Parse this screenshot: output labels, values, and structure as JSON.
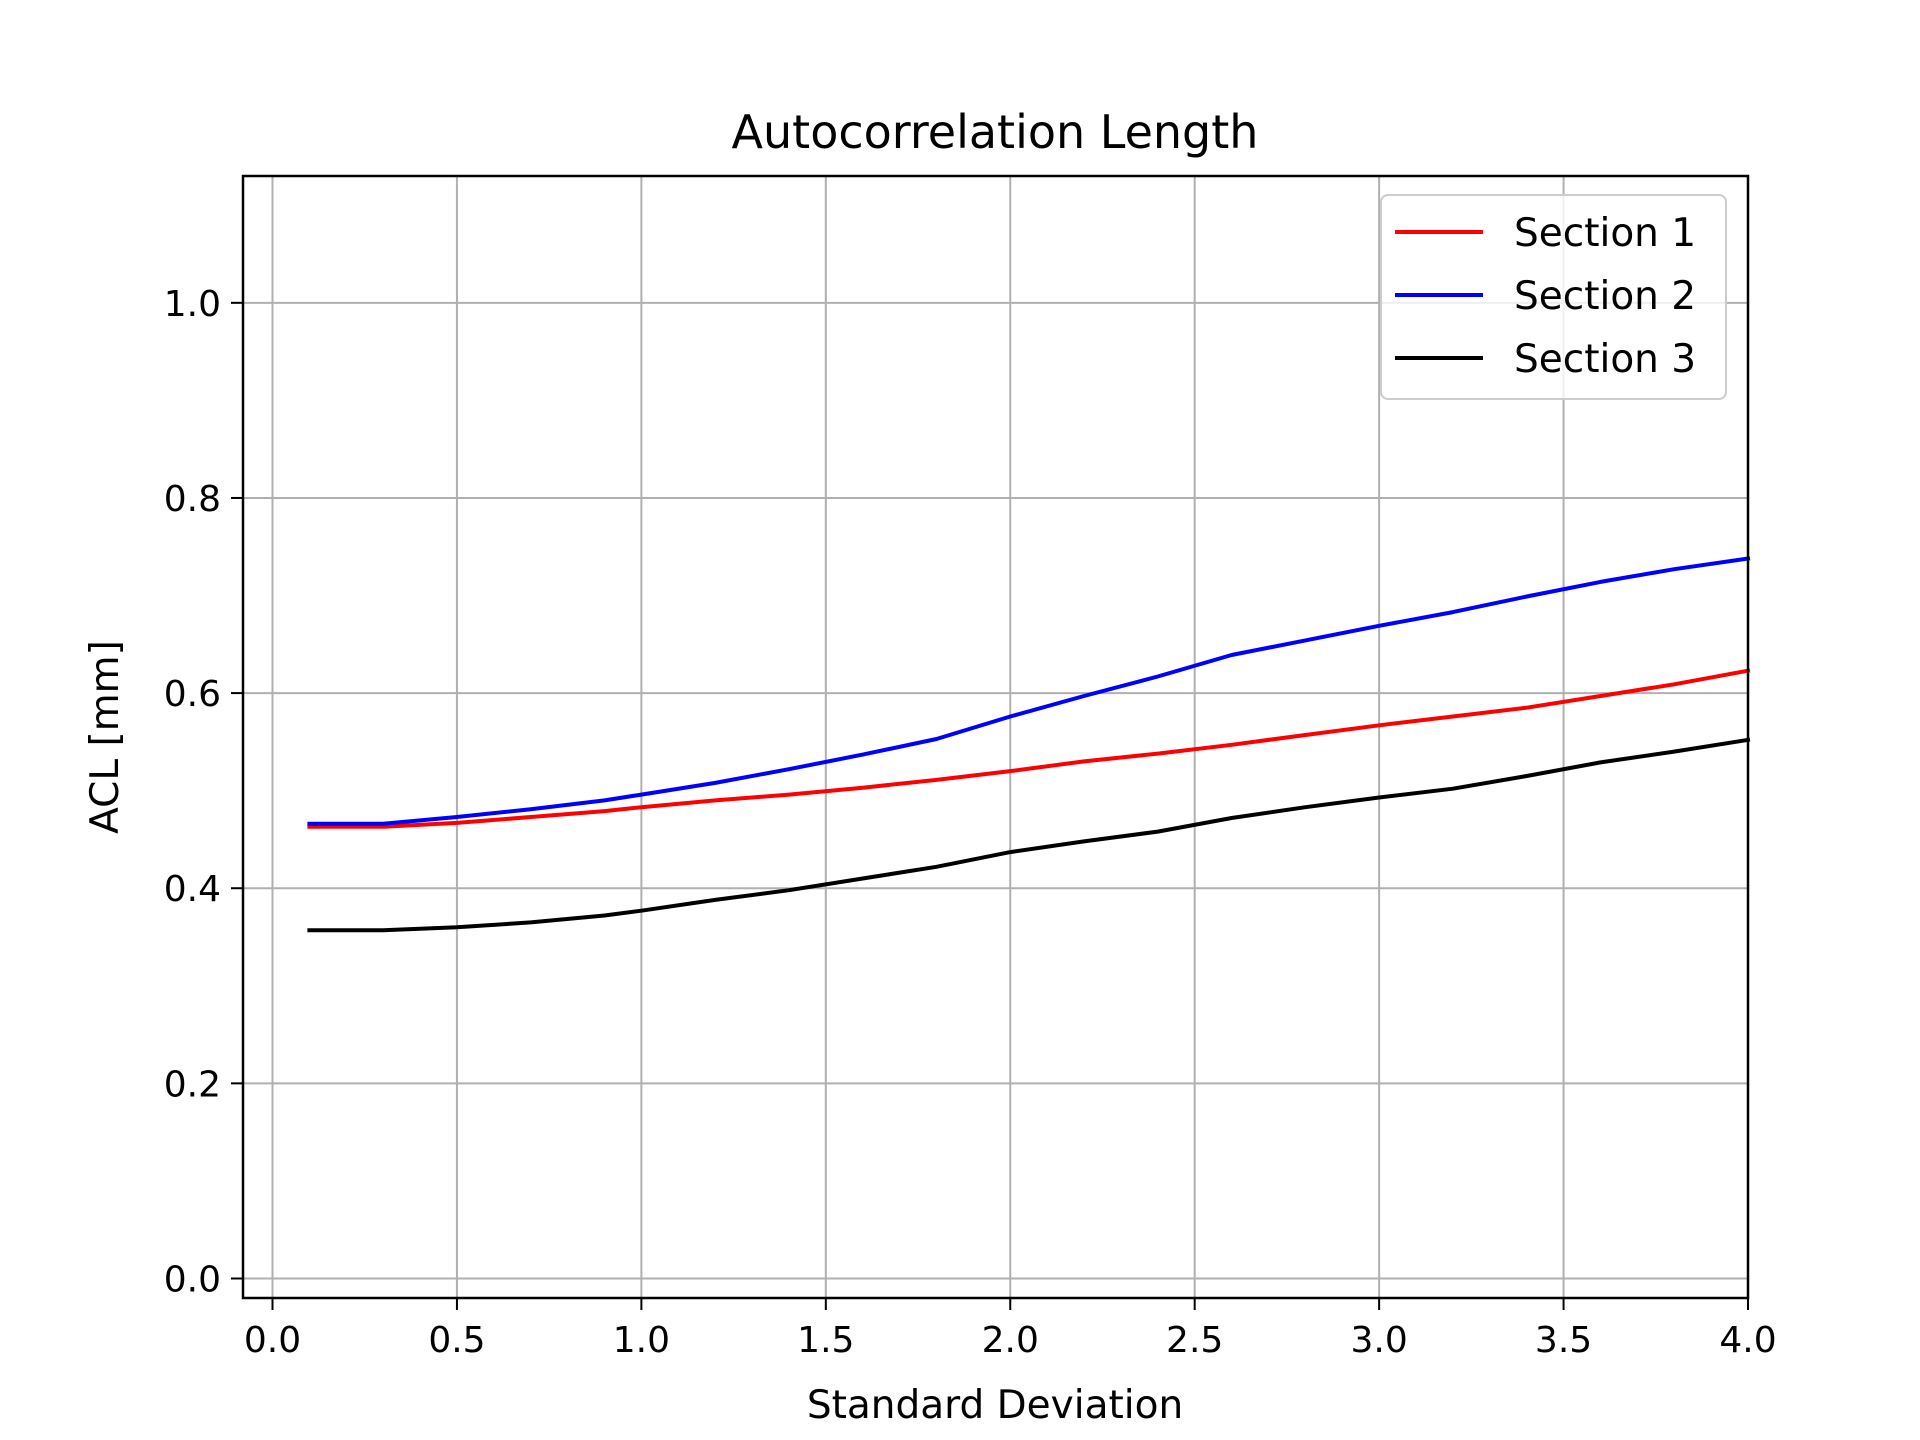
{
  "chart_data": {
    "type": "line",
    "title": "Autocorrelation Length",
    "xlabel": "Standard Deviation",
    "ylabel": "ACL [mm]",
    "xlim": [
      -0.08,
      4.0
    ],
    "ylim": [
      -0.02,
      1.13
    ],
    "xticks": [
      "0.0",
      "0.5",
      "1.0",
      "1.5",
      "2.0",
      "2.5",
      "3.0",
      "3.5",
      "4.0"
    ],
    "yticks": [
      "0.0",
      "0.2",
      "0.4",
      "0.6",
      "0.8",
      "1.0"
    ],
    "grid": true,
    "legend_position": "top-right",
    "x": [
      0.1,
      0.3,
      0.5,
      0.7,
      0.9,
      1.0,
      1.2,
      1.4,
      1.6,
      1.8,
      2.0,
      2.2,
      2.4,
      2.6,
      2.8,
      3.0,
      3.2,
      3.4,
      3.6,
      3.8,
      4.0
    ],
    "series": [
      {
        "name": "Section 1",
        "color": "#ff0000",
        "values": [
          0.463,
          0.463,
          0.467,
          0.473,
          0.479,
          0.483,
          0.49,
          0.496,
          0.503,
          0.511,
          0.52,
          0.53,
          0.538,
          0.547,
          0.557,
          0.567,
          0.576,
          0.585,
          0.597,
          0.609,
          0.623
        ]
      },
      {
        "name": "Section 2",
        "color": "#0000ff",
        "values": [
          0.466,
          0.466,
          0.473,
          0.481,
          0.49,
          0.496,
          0.508,
          0.522,
          0.537,
          0.553,
          0.576,
          0.597,
          0.617,
          0.639,
          0.654,
          0.669,
          0.683,
          0.699,
          0.714,
          0.727,
          0.738
        ]
      },
      {
        "name": "Section 3",
        "color": "#000000",
        "values": [
          0.357,
          0.357,
          0.36,
          0.365,
          0.372,
          0.377,
          0.388,
          0.398,
          0.41,
          0.422,
          0.437,
          0.448,
          0.458,
          0.472,
          0.483,
          0.493,
          0.502,
          0.515,
          0.529,
          0.54,
          0.552
        ]
      }
    ]
  }
}
